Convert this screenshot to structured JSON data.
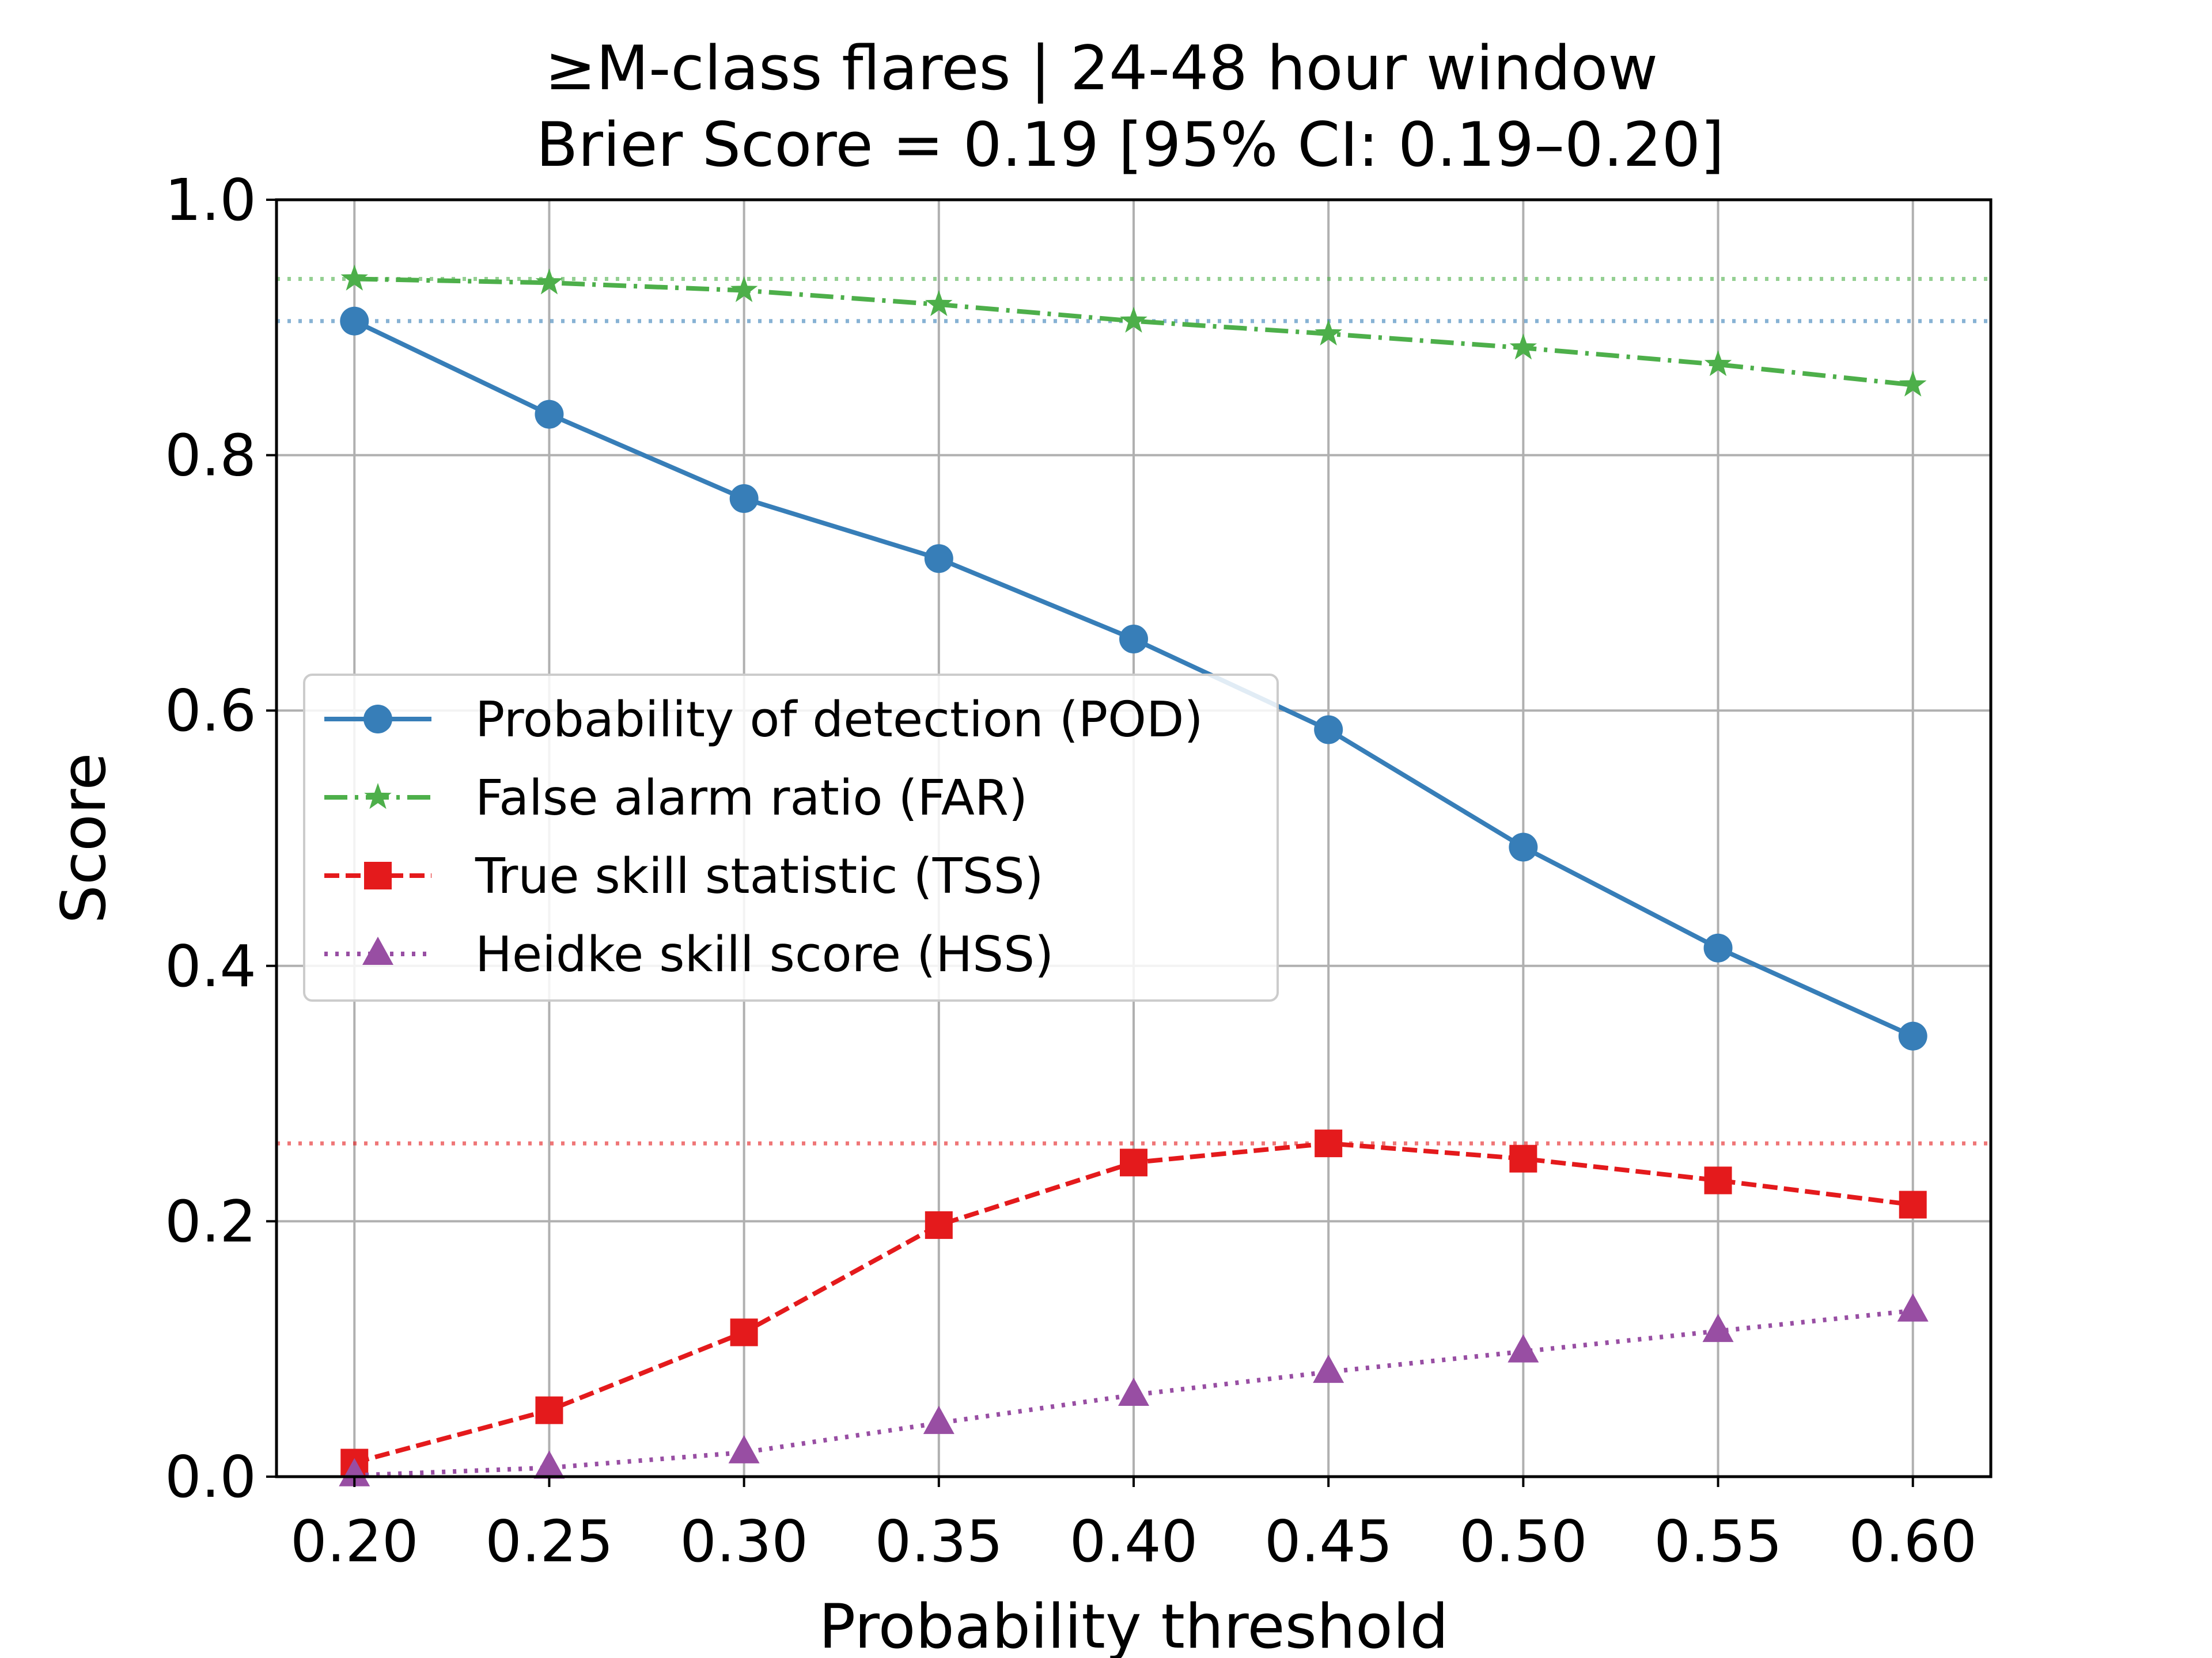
{
  "chart_data": {
    "type": "line",
    "title": "≥M-class flares | 24-48 hour window",
    "subtitle": "Brier Score = 0.19 [95% CI: 0.19–0.20]",
    "xlabel": "Probability threshold",
    "ylabel": "Score",
    "x": [
      0.2,
      0.25,
      0.3,
      0.35,
      0.4,
      0.45,
      0.5,
      0.55,
      0.6
    ],
    "x_tick_labels": [
      "0.20",
      "0.25",
      "0.30",
      "0.35",
      "0.40",
      "0.45",
      "0.50",
      "0.55",
      "0.60"
    ],
    "y_tick_values": [
      0.0,
      0.2,
      0.4,
      0.6,
      0.8,
      1.0
    ],
    "y_tick_labels": [
      "0.0",
      "0.2",
      "0.4",
      "0.6",
      "0.8",
      "1.0"
    ],
    "xlim": [
      0.18,
      0.62
    ],
    "ylim": [
      0.0,
      1.0
    ],
    "grid": true,
    "legend_position": "center-left",
    "series": [
      {
        "name": "Probability of detection (POD)",
        "color": "#377eb8",
        "line_style": "solid",
        "marker": "circle",
        "values": [
          0.905,
          0.832,
          0.766,
          0.719,
          0.656,
          0.585,
          0.493,
          0.414,
          0.345
        ]
      },
      {
        "name": "False alarm ratio (FAR)",
        "color": "#4daf4a",
        "line_style": "dashdot",
        "marker": "star",
        "values": [
          0.938,
          0.935,
          0.929,
          0.918,
          0.905,
          0.895,
          0.884,
          0.871,
          0.855
        ]
      },
      {
        "name": "True skill statistic (TSS)",
        "color": "#e41a1c",
        "line_style": "dashed",
        "marker": "square",
        "values": [
          0.011,
          0.052,
          0.113,
          0.197,
          0.246,
          0.261,
          0.249,
          0.232,
          0.213
        ]
      },
      {
        "name": "Heidke skill score (HSS)",
        "color": "#984ea3",
        "line_style": "dotted",
        "marker": "triangle",
        "values": [
          0.001,
          0.007,
          0.019,
          0.042,
          0.064,
          0.082,
          0.098,
          0.114,
          0.13
        ]
      }
    ],
    "reference_lines": [
      {
        "y": 0.938,
        "color": "#4daf4a",
        "style": "dotted"
      },
      {
        "y": 0.905,
        "color": "#377eb8",
        "style": "dotted"
      },
      {
        "y": 0.261,
        "color": "#e41a1c",
        "style": "dotted"
      }
    ]
  }
}
